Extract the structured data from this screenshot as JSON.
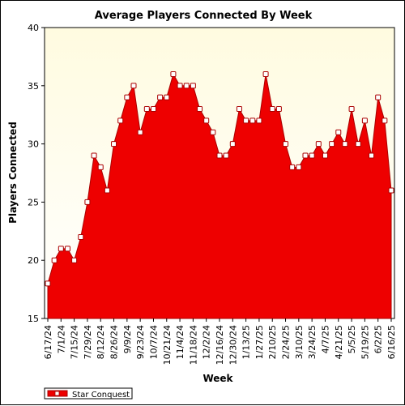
{
  "chart_data": {
    "type": "area",
    "title": "Average Players Connected By Week",
    "xlabel": "Week",
    "ylabel": "Players Connected",
    "ylim": [
      15,
      40
    ],
    "yticks": [
      15,
      20,
      25,
      30,
      35,
      40
    ],
    "grid": false,
    "legend": "bottom-left",
    "colors": {
      "fill": "#ee0000",
      "line": "#aa0000",
      "marker_fill": "#ffffff",
      "plot_bg_top": "#fffbe0",
      "plot_bg_bottom": "#ffffff"
    },
    "x_tick_labels": [
      "6/17/24",
      "7/1/24",
      "7/15/24",
      "7/29/24",
      "8/12/24",
      "8/26/24",
      "9/9/24",
      "9/23/24",
      "10/7/24",
      "10/21/24",
      "11/4/24",
      "11/18/24",
      "12/2/24",
      "12/16/24",
      "12/30/24",
      "1/13/25",
      "1/27/25",
      "2/10/25",
      "2/24/25",
      "3/10/25",
      "3/24/25",
      "4/7/25",
      "4/21/25",
      "5/5/25",
      "5/19/25",
      "6/2/25",
      "6/16/25"
    ],
    "series": [
      {
        "name": "Star Conquest",
        "x": [
          "6/17/24",
          "6/24/24",
          "7/1/24",
          "7/8/24",
          "7/15/24",
          "7/22/24",
          "7/29/24",
          "8/5/24",
          "8/12/24",
          "8/19/24",
          "8/26/24",
          "9/2/24",
          "9/9/24",
          "9/16/24",
          "9/23/24",
          "9/30/24",
          "10/7/24",
          "10/14/24",
          "10/21/24",
          "10/28/24",
          "11/4/24",
          "11/11/24",
          "11/18/24",
          "11/25/24",
          "12/2/24",
          "12/9/24",
          "12/16/24",
          "12/23/24",
          "12/30/24",
          "1/6/25",
          "1/13/25",
          "1/20/25",
          "1/27/25",
          "2/3/25",
          "2/10/25",
          "2/17/25",
          "2/24/25",
          "3/3/25",
          "3/10/25",
          "3/17/25",
          "3/24/25",
          "3/31/25",
          "4/7/25",
          "4/14/25",
          "4/21/25",
          "4/28/25",
          "5/5/25",
          "5/12/25",
          "5/19/25",
          "5/26/25",
          "6/2/25",
          "6/9/25",
          "6/16/25"
        ],
        "values": [
          18,
          20,
          21,
          21,
          20,
          22,
          25,
          29,
          28,
          26,
          30,
          32,
          34,
          35,
          31,
          33,
          33,
          34,
          34,
          36,
          35,
          35,
          35,
          33,
          32,
          31,
          29,
          29,
          30,
          33,
          32,
          32,
          32,
          36,
          33,
          33,
          30,
          28,
          28,
          29,
          29,
          30,
          29,
          30,
          31,
          30,
          33,
          30,
          32,
          29,
          34,
          32,
          26
        ]
      }
    ]
  }
}
